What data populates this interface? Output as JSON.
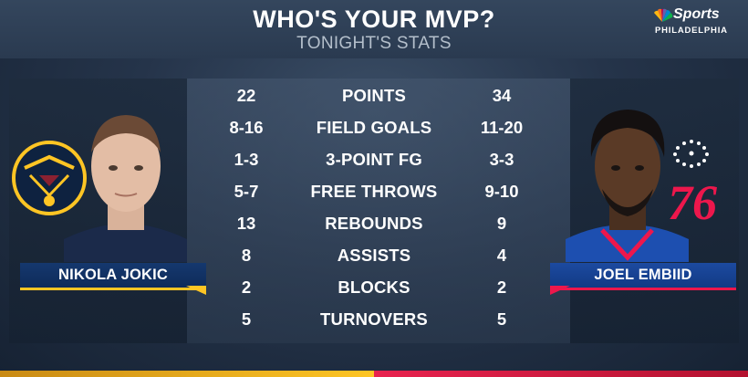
{
  "header": {
    "title": "WHO'S YOUR MVP?",
    "subtitle": "TONIGHT'S STATS"
  },
  "network": {
    "word": "Sports",
    "city": "PHILADELPHIA",
    "icon": "peacock-icon"
  },
  "left_player": {
    "name": "NIKOLA JOKIC",
    "team_logo_icon": "nuggets-logo",
    "accent": "#fec524",
    "plate_color": "#0e2b5a"
  },
  "right_player": {
    "name": "JOEL EMBIID",
    "team_logo_icon": "sixers-76-logo",
    "accent": "#ed174c",
    "plate_color": "#123a85"
  },
  "stats": [
    {
      "label": "POINTS",
      "left": "22",
      "right": "34"
    },
    {
      "label": "FIELD GOALS",
      "left": "8-16",
      "right": "11-20"
    },
    {
      "label": "3-POINT FG",
      "left": "1-3",
      "right": "3-3"
    },
    {
      "label": "FREE THROWS",
      "left": "5-7",
      "right": "9-10"
    },
    {
      "label": "REBOUNDS",
      "left": "13",
      "right": "9"
    },
    {
      "label": "ASSISTS",
      "left": "8",
      "right": "4"
    },
    {
      "label": "BLOCKS",
      "left": "2",
      "right": "2"
    },
    {
      "label": "TURNOVERS",
      "left": "5",
      "right": "5"
    }
  ]
}
